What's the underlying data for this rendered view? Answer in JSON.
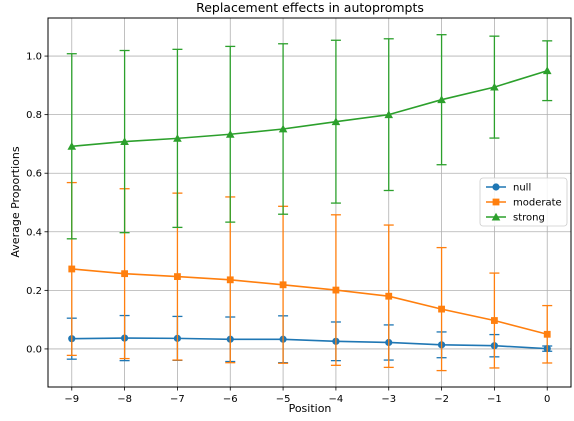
{
  "chart_data": {
    "type": "line",
    "title": "Replacement effects in autoprompts",
    "xlabel": "Position",
    "ylabel": "Average Proportions",
    "x": [
      -9,
      -8,
      -7,
      -6,
      -5,
      -4,
      -3,
      -2,
      -1,
      0
    ],
    "xticks": [
      -9,
      -8,
      -7,
      -6,
      -5,
      -4,
      -3,
      -2,
      -1,
      0
    ],
    "xtick_labels": [
      "−9",
      "−8",
      "−7",
      "−6",
      "−5",
      "−4",
      "−3",
      "−2",
      "−1",
      "0"
    ],
    "yticks": [
      0.0,
      0.2,
      0.4,
      0.6,
      0.8,
      1.0
    ],
    "ytick_labels": [
      "0.0",
      "0.2",
      "0.4",
      "0.6",
      "0.8",
      "1.0"
    ],
    "xlim": [
      -9.45,
      0.45
    ],
    "ylim": [
      -0.13,
      1.13
    ],
    "grid": true,
    "legend_position": "center-right",
    "series": [
      {
        "name": "null",
        "color": "#1f77b4",
        "marker": "circle",
        "values": [
          0.035,
          0.037,
          0.036,
          0.033,
          0.033,
          0.026,
          0.022,
          0.014,
          0.011,
          0.001
        ],
        "error": [
          0.07,
          0.077,
          0.075,
          0.076,
          0.08,
          0.066,
          0.06,
          0.044,
          0.038,
          0.009
        ]
      },
      {
        "name": "moderate",
        "color": "#ff7f0e",
        "marker": "square",
        "values": [
          0.273,
          0.257,
          0.247,
          0.236,
          0.219,
          0.201,
          0.18,
          0.136,
          0.097,
          0.05
        ],
        "error": [
          0.295,
          0.29,
          0.285,
          0.283,
          0.268,
          0.257,
          0.243,
          0.21,
          0.162,
          0.098
        ]
      },
      {
        "name": "strong",
        "color": "#2ca02c",
        "marker": "triangle",
        "values": [
          0.692,
          0.708,
          0.719,
          0.733,
          0.751,
          0.776,
          0.8,
          0.851,
          0.894,
          0.95
        ],
        "error": [
          0.316,
          0.311,
          0.304,
          0.3,
          0.291,
          0.278,
          0.259,
          0.222,
          0.174,
          0.102
        ]
      }
    ]
  }
}
